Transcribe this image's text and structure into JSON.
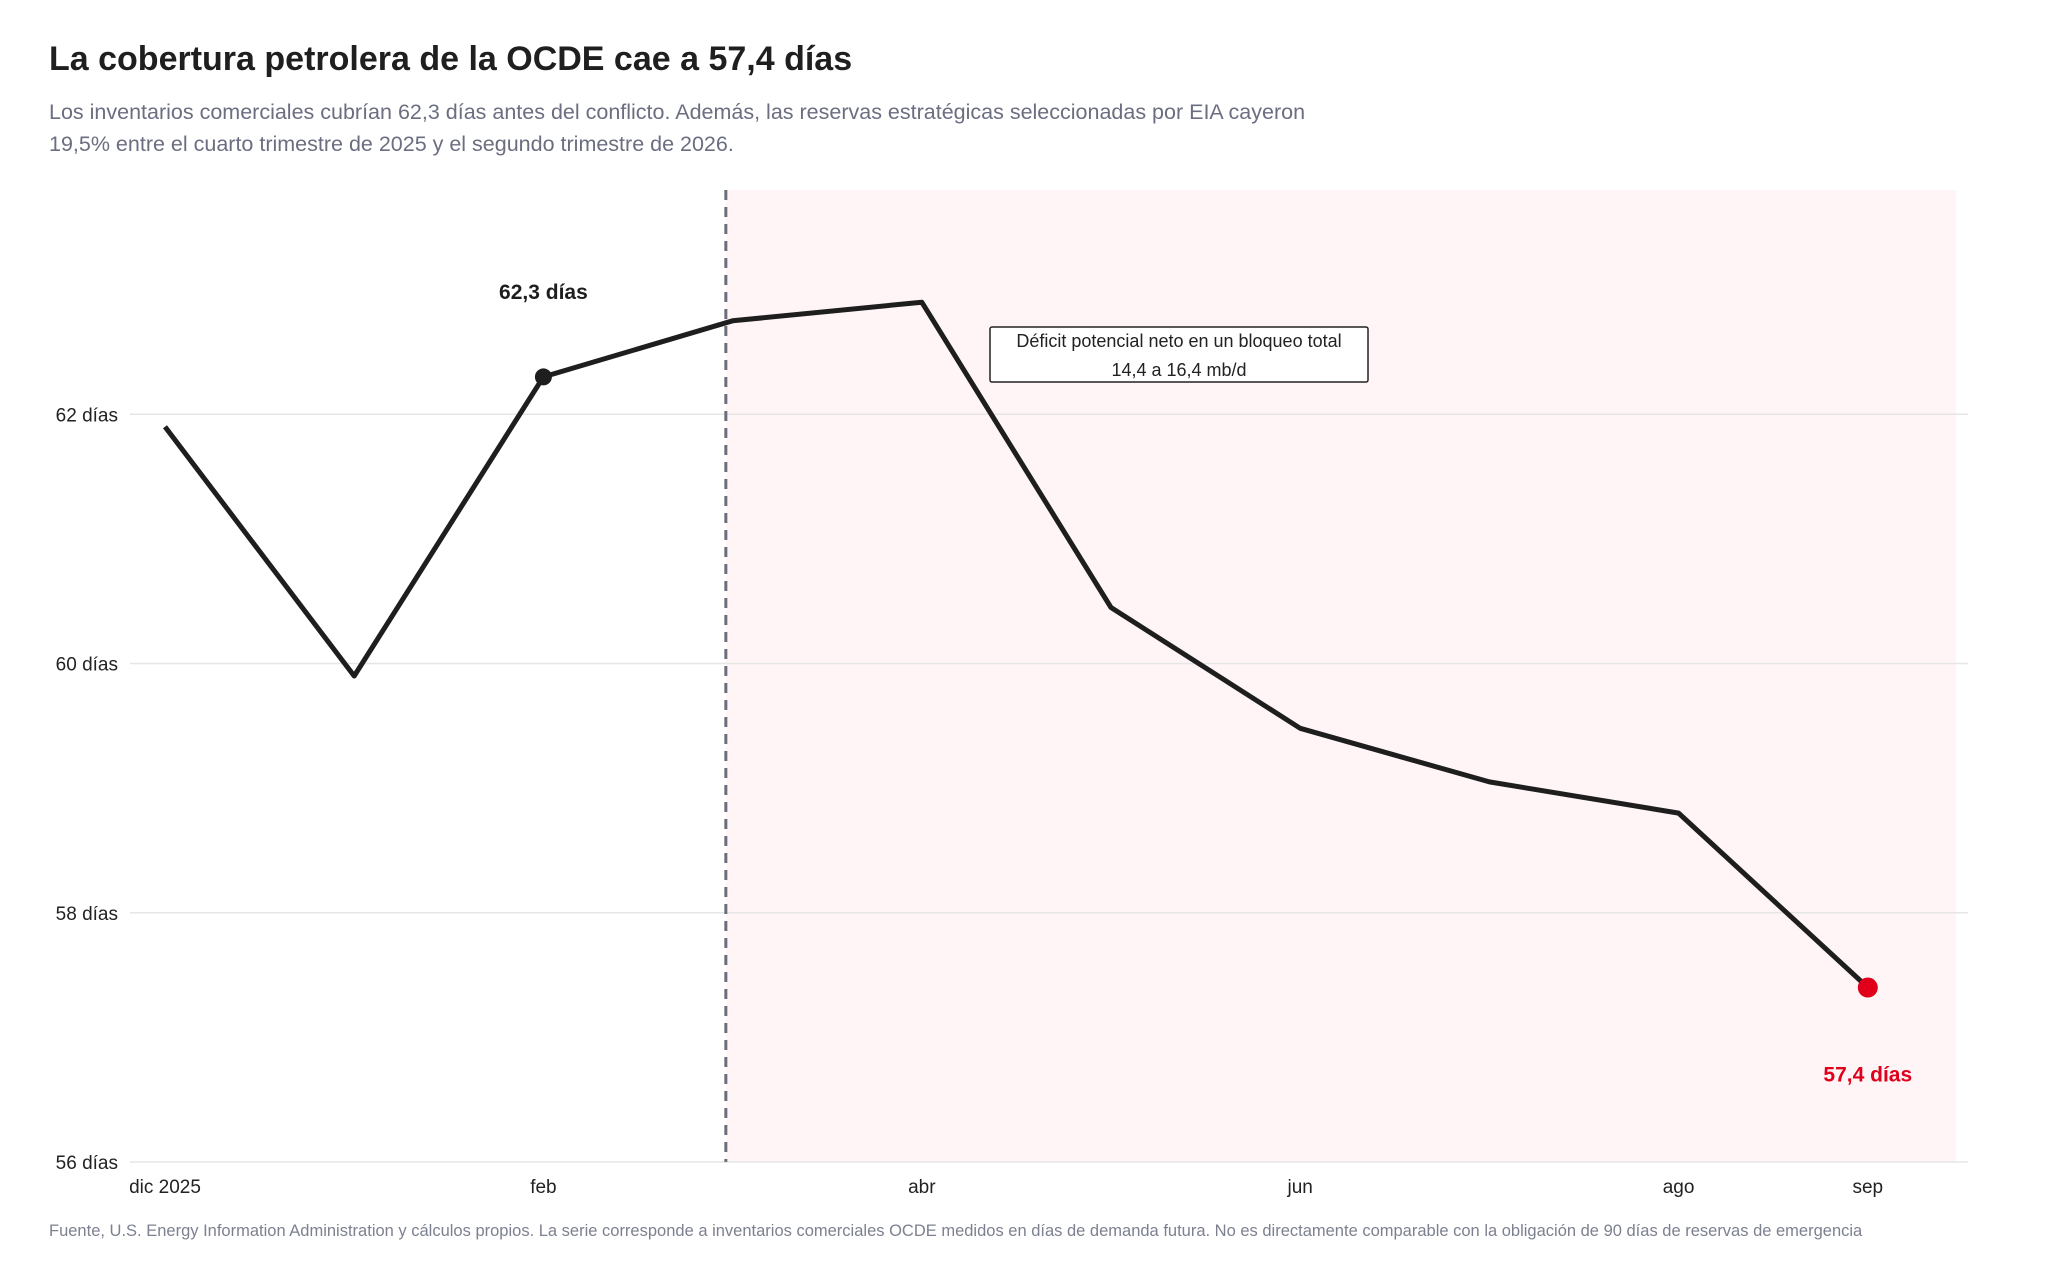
{
  "header": {
    "title": "La cobertura petrolera de la OCDE cae a 57,4 días",
    "subtitle": "Los inventarios comerciales cubrían 62,3 días antes del conflicto. Además, las reservas estratégicas seleccionadas por EIA cayeron 19,5% entre el cuarto trimestre de 2025 y el segundo trimestre de 2026."
  },
  "footer": {
    "source": "Fuente, U.S. Energy Information Administration y cálculos propios. La serie corresponde a inventarios comerciales OCDE medidos en días de demanda futura. No es directamente comparable con la obligación de 90 días de reservas de emergencia"
  },
  "colors": {
    "line": "#1e1e1e",
    "highlight": "#e0001b",
    "shade": "#fff5f6",
    "grid": "#e6e6e6",
    "vline": "#6b6e7c"
  },
  "chart_data": {
    "type": "line",
    "x": [
      "2025-12",
      "2026-01",
      "2026-02",
      "2026-03",
      "2026-04",
      "2026-05",
      "2026-06",
      "2026-07",
      "2026-08",
      "2026-09"
    ],
    "series": [
      {
        "values": [
          61.9,
          59.9,
          62.3,
          62.75,
          62.9,
          60.45,
          59.48,
          59.05,
          58.8,
          57.4
        ]
      }
    ],
    "ylim": [
      56,
      63.8
    ],
    "y_ticks": [
      56,
      58,
      60,
      62
    ],
    "y_tick_labels": [
      "56 días",
      "58 días",
      "60 días",
      "62 días"
    ],
    "x_ticks": [
      {
        "x": "2025-12",
        "label": "dic 2025"
      },
      {
        "x": "2026-02",
        "label": "feb"
      },
      {
        "x": "2026-04",
        "label": "abr"
      },
      {
        "x": "2026-06",
        "label": "jun"
      },
      {
        "x": "2026-08",
        "label": "ago"
      },
      {
        "x": "2026-09",
        "label": "sep"
      }
    ],
    "conflict_start": "2026-02-28",
    "shaded_range": [
      "2026-02-28",
      "2026-09-15"
    ],
    "grid": "horizontal",
    "highlights": [
      {
        "x": "2026-02",
        "value": 62.3,
        "label": "62,3 días",
        "color": "#1e1e1e"
      },
      {
        "x": "2026-09",
        "value": 57.4,
        "label": "57,4 días",
        "color": "#e0001b"
      }
    ],
    "annotation_box": {
      "line1": "Déficit potencial neto en un bloqueo total",
      "line2": "14,4 a 16,4 mb/d"
    }
  }
}
